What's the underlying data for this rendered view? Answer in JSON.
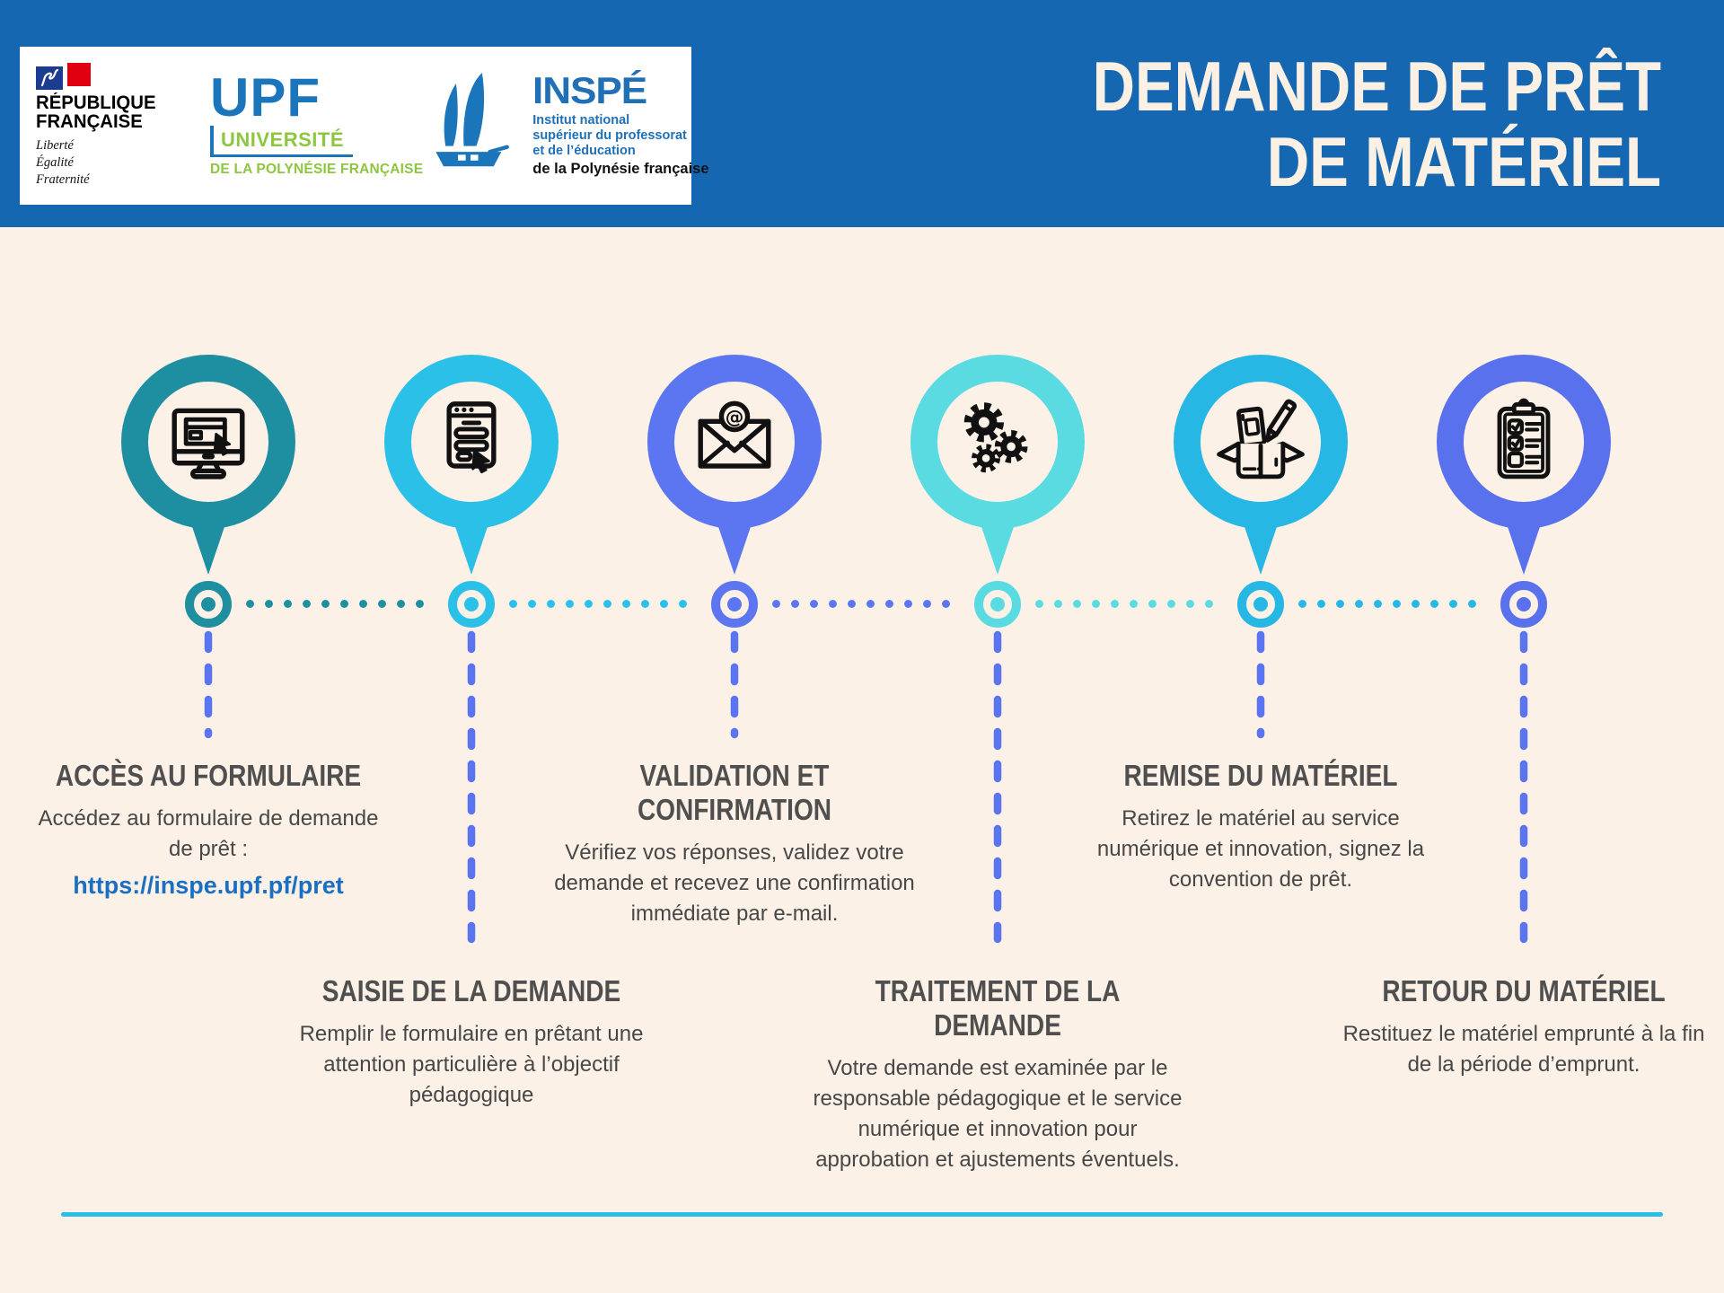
{
  "page": {
    "background_color": "#FBF1E7"
  },
  "header": {
    "bg_color": "#1667B1",
    "title_line1": "DEMANDE DE PRÊT",
    "title_line2": "DE MATÉRIEL",
    "logos": {
      "republique": {
        "name_line1": "RÉPUBLIQUE",
        "name_line2": "FRANÇAISE",
        "motto_line1": "Liberté",
        "motto_line2": "Égalité",
        "motto_line3": "Fraternité"
      },
      "upf": {
        "acronym": "UPF",
        "line1": "UNIVERSITÉ",
        "line2": "DE LA POLYNÉSIE FRANÇAISE",
        "blue": "#1B75BB",
        "green": "#8DC63F"
      },
      "inspe": {
        "acronym": "INSPÉ",
        "desc_line1": "Institut national",
        "desc_line2": "supérieur du professorat",
        "desc_line3": "et de l’éducation",
        "region": "de la Polynésie française",
        "blue": "#2070B7"
      }
    }
  },
  "timeline": {
    "dash_color": "#5B74F0",
    "bottom_line_color": "#29BFE8",
    "link_color": "#1B6FC2",
    "steps": [
      {
        "title": "ACCÈS AU FORMULAIRE",
        "description": "Accédez au formulaire de demande de prêt :",
        "link": "https://inspe.upf.pf/pret",
        "color": "#1E8FA1",
        "icon": "computer-form-icon",
        "position": "top"
      },
      {
        "title": "SAISIE DE LA DEMANDE",
        "description": "Remplir le formulaire en prêtant une attention particulière à l’objectif pédagogique",
        "color": "#2BC0E8",
        "icon": "online-form-icon",
        "position": "bottom"
      },
      {
        "title": "VALIDATION ET CONFIRMATION",
        "description": "Vérifiez vos réponses, validez votre demande et recevez une confirmation immédiate par e-mail.",
        "color": "#5C76F2",
        "icon": "email-at-icon",
        "position": "top"
      },
      {
        "title": "TRAITEMENT DE LA DEMANDE",
        "description": "Votre demande est examinée par le responsable pédagogique et le service numérique et innovation pour approbation et ajustements éventuels.",
        "color": "#5ADBE2",
        "icon": "gears-icon",
        "position": "bottom"
      },
      {
        "title": "REMISE DU MATÉRIEL",
        "description": "Retirez le matériel au service numérique et innovation, signez la convention de prêt.",
        "color": "#26B7E4",
        "icon": "open-box-icon",
        "position": "top"
      },
      {
        "title": "RETOUR DU MATÉRIEL",
        "description": "Restituez le matériel emprunté à la fin de la période d’emprunt.",
        "color": "#5A71EE",
        "icon": "checklist-icon",
        "position": "bottom"
      }
    ]
  }
}
